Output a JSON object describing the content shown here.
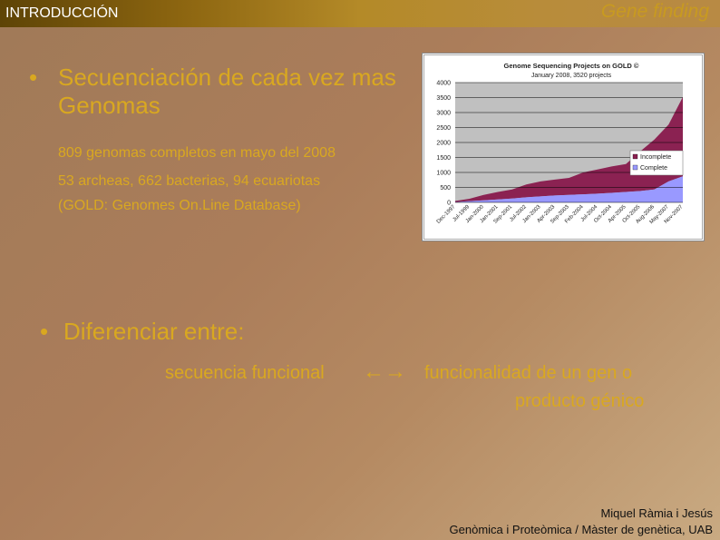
{
  "header": {
    "section": "INTRODUCCIÓN",
    "topic": "Gene finding"
  },
  "bullet1": {
    "text": "Secuenciación de cada vez mas Genomas",
    "lines": [
      "809 genomas completos en mayo del 2008",
      "53 archeas, 662 bacterias, 94 ecuariotas",
      "(GOLD: Genomes On.Line Database)"
    ]
  },
  "bullet2": {
    "text": "Diferenciar entre:",
    "left": "secuencia funcional",
    "arrow": "←→",
    "right_line1": "funcionalidad de un gen o",
    "right_line2": "producto génico"
  },
  "footer": {
    "author": "Miquel Ràmia i Jesús",
    "course": "Genòmica i Proteòmica / Màster de genètica, UAB"
  },
  "chart_data": {
    "type": "area",
    "title": "Genome Sequencing Projects on GOLD ©",
    "subtitle": "January 2008, 3520 projects",
    "categories": [
      "Dec-1997",
      "Jul-1999",
      "Jan-2000",
      "Jan-2001",
      "Sep-2001",
      "Jul-2002",
      "Jan-2003",
      "Apr-2003",
      "Sep-2003",
      "Feb-2004",
      "Jul-2004",
      "Oct-2004",
      "Apr-2005",
      "Oct-2005",
      "Aug-2006",
      "May-2007",
      "Nov-2007"
    ],
    "yticks": [
      0,
      500,
      1000,
      1500,
      2000,
      2500,
      3000,
      3500,
      4000
    ],
    "ylim": [
      0,
      4000
    ],
    "grid": true,
    "legend": "right",
    "stacked": true,
    "series": [
      {
        "name": "Incomplete",
        "color": "#8b2252",
        "values": [
          40,
          80,
          180,
          250,
          300,
          430,
          500,
          530,
          570,
          730,
          810,
          880,
          930,
          1320,
          1670,
          1900,
          2650
        ]
      },
      {
        "name": "Complete",
        "color": "#9999ff",
        "values": [
          10,
          40,
          70,
          100,
          130,
          170,
          200,
          230,
          250,
          270,
          290,
          320,
          350,
          380,
          430,
          700,
          870
        ]
      }
    ],
    "plot_bg": "#c0c0c0"
  }
}
